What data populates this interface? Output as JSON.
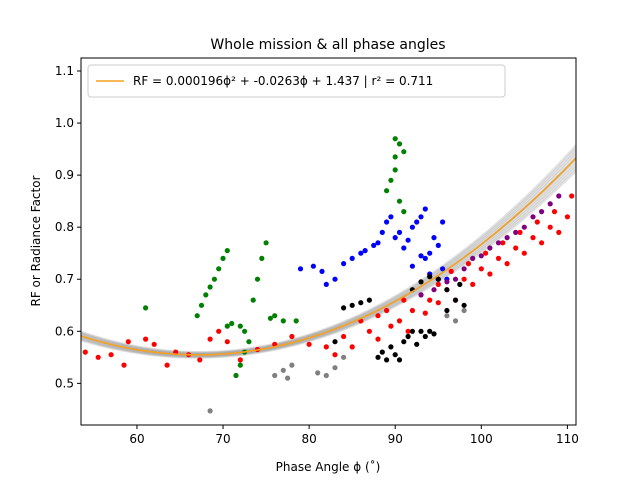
{
  "chart_data": {
    "type": "scatter",
    "title": "Whole mission & all phase angles",
    "xlabel": "Phase Angle ϕ (˚)",
    "ylabel": "RF or Radiance Factor",
    "xlim": [
      53.5,
      111
    ],
    "ylim": [
      0.42,
      1.125
    ],
    "xticks": [
      60,
      70,
      80,
      90,
      100,
      110
    ],
    "yticks": [
      0.5,
      0.6,
      0.7,
      0.8,
      0.9,
      1.0,
      1.1
    ],
    "grid": false,
    "legend_placement": "top-left",
    "fit": {
      "label": "RF = 0.000196ϕ² + -0.0263ϕ +   1.437  |  r² = 0.711",
      "coefficients": [
        0.000196,
        -0.0263,
        1.437
      ],
      "r2": 0.711,
      "color": "#f5a020",
      "band_color": "#7a7a7a"
    },
    "series": [
      {
        "color": "#ff0000",
        "points": [
          [
            54,
            0.56
          ],
          [
            55.5,
            0.55
          ],
          [
            57,
            0.555
          ],
          [
            58.5,
            0.535
          ],
          [
            59,
            0.58
          ],
          [
            61,
            0.585
          ],
          [
            62,
            0.575
          ],
          [
            63.5,
            0.535
          ],
          [
            64.5,
            0.56
          ],
          [
            66,
            0.555
          ],
          [
            67.3,
            0.545
          ],
          [
            68.5,
            0.585
          ],
          [
            69.5,
            0.6
          ],
          [
            70.5,
            0.58
          ],
          [
            72,
            0.545
          ],
          [
            74,
            0.565
          ],
          [
            76,
            0.575
          ],
          [
            78,
            0.59
          ],
          [
            80,
            0.575
          ],
          [
            82,
            0.57
          ],
          [
            83,
            0.555
          ],
          [
            84,
            0.59
          ],
          [
            85,
            0.57
          ],
          [
            86,
            0.62
          ],
          [
            87,
            0.6
          ],
          [
            88,
            0.63
          ],
          [
            88,
            0.585
          ],
          [
            89,
            0.64
          ],
          [
            89.5,
            0.61
          ],
          [
            90.5,
            0.62
          ],
          [
            91,
            0.66
          ],
          [
            91.5,
            0.6
          ],
          [
            92,
            0.64
          ],
          [
            93,
            0.67
          ],
          [
            93.5,
            0.635
          ],
          [
            94,
            0.66
          ],
          [
            95,
            0.69
          ],
          [
            95,
            0.655
          ],
          [
            96,
            0.68
          ],
          [
            96.5,
            0.715
          ],
          [
            97,
            0.66
          ],
          [
            98,
            0.7
          ],
          [
            98.5,
            0.73
          ],
          [
            99,
            0.69
          ],
          [
            100,
            0.72
          ],
          [
            100.5,
            0.75
          ],
          [
            101,
            0.71
          ],
          [
            102,
            0.74
          ],
          [
            102.5,
            0.77
          ],
          [
            103,
            0.73
          ],
          [
            104,
            0.76
          ],
          [
            104.5,
            0.79
          ],
          [
            105,
            0.75
          ],
          [
            106,
            0.78
          ],
          [
            106.5,
            0.81
          ],
          [
            107,
            0.77
          ],
          [
            108,
            0.8
          ],
          [
            108.5,
            0.83
          ],
          [
            109,
            0.79
          ],
          [
            110,
            0.82
          ],
          [
            110.5,
            0.86
          ]
        ]
      },
      {
        "color": "#008000",
        "points": [
          [
            61,
            0.645
          ],
          [
            67,
            0.63
          ],
          [
            67.5,
            0.65
          ],
          [
            68,
            0.67
          ],
          [
            68.5,
            0.685
          ],
          [
            69,
            0.7
          ],
          [
            69.5,
            0.72
          ],
          [
            70,
            0.74
          ],
          [
            70.5,
            0.755
          ],
          [
            70.5,
            0.61
          ],
          [
            71,
            0.615
          ],
          [
            71.5,
            0.515
          ],
          [
            72,
            0.535
          ],
          [
            72,
            0.61
          ],
          [
            72.5,
            0.6
          ],
          [
            72.5,
            0.56
          ],
          [
            73,
            0.58
          ],
          [
            73.5,
            0.66
          ],
          [
            74,
            0.7
          ],
          [
            74.5,
            0.74
          ],
          [
            75,
            0.77
          ],
          [
            75.5,
            0.625
          ],
          [
            76,
            0.63
          ],
          [
            77,
            0.62
          ],
          [
            78.5,
            0.62
          ],
          [
            89,
            0.87
          ],
          [
            89.5,
            0.89
          ],
          [
            90,
            0.91
          ],
          [
            90,
            0.935
          ],
          [
            90,
            0.97
          ],
          [
            90.5,
            0.96
          ],
          [
            91,
            0.945
          ],
          [
            90.5,
            0.85
          ],
          [
            91,
            0.83
          ]
        ]
      },
      {
        "color": "#0000ff",
        "points": [
          [
            79,
            0.72
          ],
          [
            80.5,
            0.725
          ],
          [
            81.5,
            0.715
          ],
          [
            82,
            0.69
          ],
          [
            83,
            0.7
          ],
          [
            84,
            0.73
          ],
          [
            85,
            0.74
          ],
          [
            86,
            0.75
          ],
          [
            86.5,
            0.755
          ],
          [
            87.5,
            0.765
          ],
          [
            88,
            0.77
          ],
          [
            88.5,
            0.79
          ],
          [
            89,
            0.81
          ],
          [
            89.5,
            0.82
          ],
          [
            90,
            0.78
          ],
          [
            90.5,
            0.79
          ],
          [
            91,
            0.76
          ],
          [
            91.5,
            0.775
          ],
          [
            92,
            0.8
          ],
          [
            92.5,
            0.81
          ],
          [
            93,
            0.82
          ],
          [
            93.5,
            0.835
          ],
          [
            93.5,
            0.74
          ],
          [
            94,
            0.75
          ],
          [
            94,
            0.71
          ],
          [
            94.5,
            0.78
          ],
          [
            95,
            0.765
          ],
          [
            95,
            0.7
          ],
          [
            95.5,
            0.72
          ],
          [
            95.5,
            0.81
          ],
          [
            96,
            0.7
          ],
          [
            92,
            0.725
          ],
          [
            93,
            0.745
          ]
        ]
      },
      {
        "color": "#000000",
        "points": [
          [
            83,
            0.58
          ],
          [
            84,
            0.645
          ],
          [
            85,
            0.65
          ],
          [
            86,
            0.655
          ],
          [
            87,
            0.66
          ],
          [
            88,
            0.55
          ],
          [
            88.5,
            0.56
          ],
          [
            89,
            0.545
          ],
          [
            89.5,
            0.57
          ],
          [
            90,
            0.555
          ],
          [
            90.5,
            0.545
          ],
          [
            91,
            0.58
          ],
          [
            91.5,
            0.59
          ],
          [
            92,
            0.6
          ],
          [
            92.5,
            0.575
          ],
          [
            93,
            0.6
          ],
          [
            93.5,
            0.59
          ],
          [
            94,
            0.6
          ],
          [
            94.5,
            0.595
          ],
          [
            92,
            0.68
          ],
          [
            93,
            0.695
          ],
          [
            94,
            0.705
          ],
          [
            95,
            0.7
          ],
          [
            96,
            0.68
          ],
          [
            97,
            0.66
          ],
          [
            97.5,
            0.69
          ],
          [
            98,
            0.65
          ],
          [
            96,
            0.64
          ]
        ]
      },
      {
        "color": "#800080",
        "points": [
          [
            93,
            0.67
          ],
          [
            94.5,
            0.68
          ],
          [
            96,
            0.695
          ],
          [
            97,
            0.7
          ],
          [
            98,
            0.72
          ],
          [
            99,
            0.74
          ],
          [
            100,
            0.745
          ],
          [
            101,
            0.76
          ],
          [
            102,
            0.77
          ],
          [
            103,
            0.78
          ],
          [
            104,
            0.79
          ],
          [
            105,
            0.8
          ],
          [
            106,
            0.82
          ],
          [
            107,
            0.83
          ],
          [
            108,
            0.845
          ],
          [
            109,
            0.86
          ]
        ]
      },
      {
        "color": "#808080",
        "points": [
          [
            68.5,
            0.447
          ],
          [
            76,
            0.515
          ],
          [
            77,
            0.525
          ],
          [
            77.5,
            0.51
          ],
          [
            78,
            0.535
          ],
          [
            81,
            0.52
          ],
          [
            82,
            0.515
          ],
          [
            83,
            0.53
          ],
          [
            84,
            0.55
          ],
          [
            96,
            0.63
          ],
          [
            97,
            0.62
          ],
          [
            98,
            0.64
          ]
        ]
      }
    ]
  }
}
